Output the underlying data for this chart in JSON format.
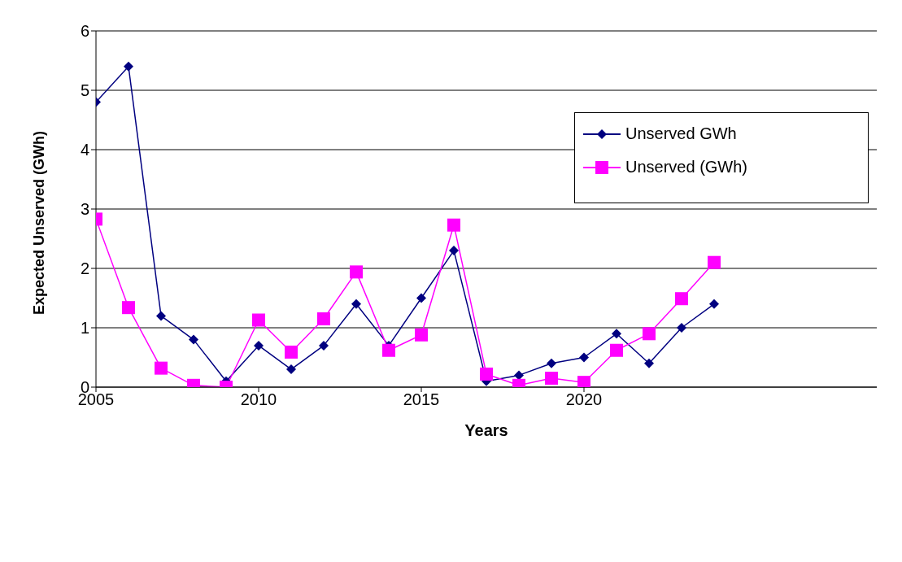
{
  "chart_data": {
    "type": "line",
    "xlabel": "Years",
    "ylabel": "Expected Unserved (GWh)",
    "x": [
      2005,
      2006,
      2007,
      2008,
      2009,
      2010,
      2011,
      2012,
      2013,
      2014,
      2015,
      2016,
      2017,
      2018,
      2019,
      2020,
      2021,
      2022,
      2023,
      2024
    ],
    "series": [
      {
        "name": "Unserved GWh",
        "color": "#000080",
        "marker": "diamond",
        "values": [
          4.8,
          5.4,
          1.2,
          0.8,
          0.1,
          0.7,
          0.3,
          0.7,
          1.4,
          0.7,
          1.5,
          2.3,
          0.1,
          0.2,
          0.4,
          0.5,
          0.9,
          0.4,
          1.0,
          1.4
        ]
      },
      {
        "name": "Unserved (GWh)",
        "color": "#ff00ff",
        "marker": "square",
        "values": [
          2.83,
          1.34,
          0.32,
          0.03,
          0.0,
          1.13,
          0.59,
          1.15,
          1.94,
          0.62,
          0.88,
          2.73,
          0.22,
          0.03,
          0.15,
          0.08,
          0.62,
          0.9,
          1.49,
          2.1
        ]
      }
    ],
    "xlim": [
      2005,
      2029
    ],
    "xticks": [
      2005,
      2010,
      2015,
      2020
    ],
    "ylim": [
      0,
      6
    ],
    "yticks": [
      0,
      1,
      2,
      3,
      4,
      5,
      6
    ],
    "grid": "y",
    "legend": "top right",
    "line_style": "solid"
  }
}
